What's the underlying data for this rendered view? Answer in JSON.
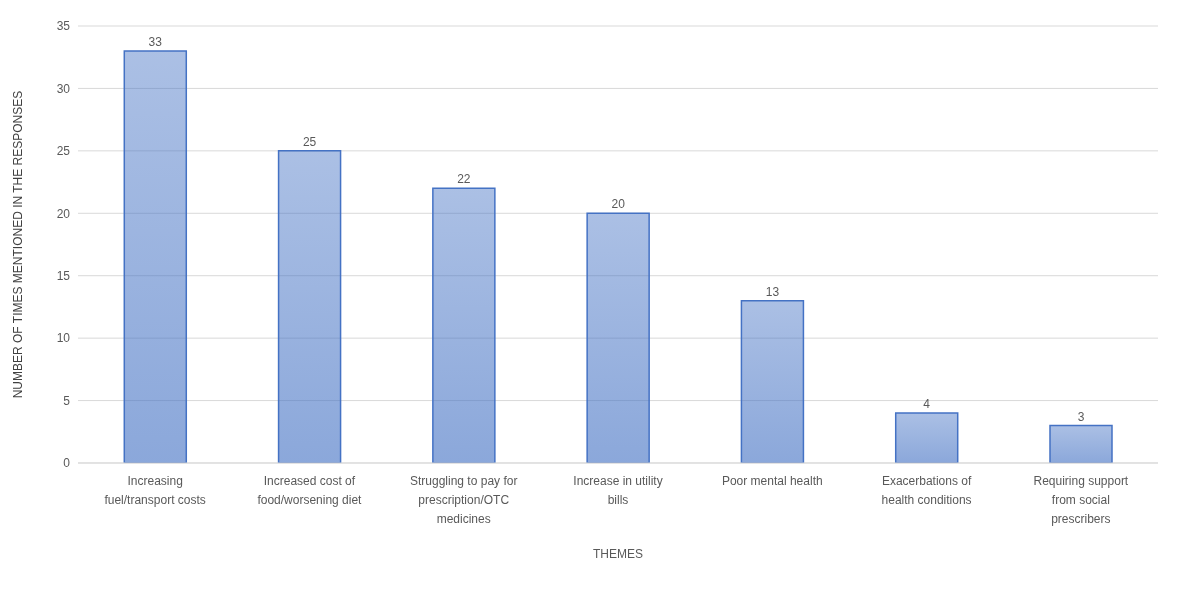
{
  "chart_data": {
    "type": "bar",
    "xlabel": "THEMES",
    "ylabel": "NUMBER OF TIMES MENTIONED IN THE RESPONSES",
    "categories": [
      "Increasing fuel/transport costs",
      "Increased cost of food/worsening diet",
      "Struggling to pay for prescription/OTC medicines",
      "Increase in utility bills",
      "Poor mental health",
      "Exacerbations of health conditions",
      "Requiring support from social prescribers"
    ],
    "values": [
      33,
      25,
      22,
      20,
      13,
      4,
      3
    ],
    "color": "#4472c4",
    "ylim": [
      0,
      35
    ],
    "yticks": [
      0,
      5,
      10,
      15,
      20,
      25,
      30,
      35
    ],
    "grid": "y",
    "data_labels": true
  }
}
